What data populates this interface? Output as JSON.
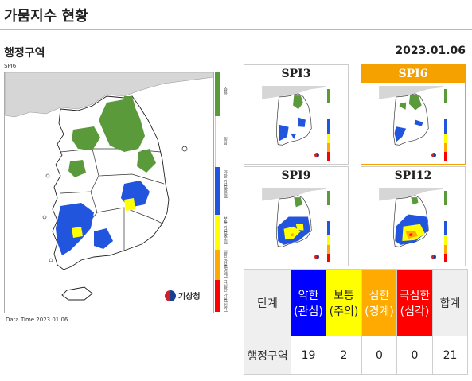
{
  "page": {
    "title": "가뭄지수 현황"
  },
  "section": {
    "label": "행정구역",
    "date": "2023.01.06"
  },
  "main_map": {
    "caption": "SPI6",
    "data_time": "Data Time 2023.01.06",
    "logo_text": "기상청",
    "legend_labels": [
      "습윤",
      "정상",
      "약한 가뭄(관심)",
      "보통 가뭄(주의)",
      "심한 가뭄(경계)",
      "극심한 가뭄(심각)"
    ],
    "legend_colors": [
      "#5a9a3a",
      "#ffffff",
      "#2255dd",
      "#ffff00",
      "#ffaa00",
      "#ff0000"
    ]
  },
  "thumbnails": [
    {
      "title": "SPI3"
    },
    {
      "title": "SPI6"
    },
    {
      "title": "SPI9"
    },
    {
      "title": "SPI12"
    }
  ],
  "stage_table": {
    "row_header_stage": "단계",
    "row_header_region": "행정구역",
    "levels": [
      {
        "label": "약한(관심)",
        "count": "19"
      },
      {
        "label": "보통(주의)",
        "count": "2"
      },
      {
        "label": "심한(경계)",
        "count": "0"
      },
      {
        "label": "극심한(심각)",
        "count": "0"
      },
      {
        "label": "합계",
        "count": "21"
      }
    ]
  }
}
